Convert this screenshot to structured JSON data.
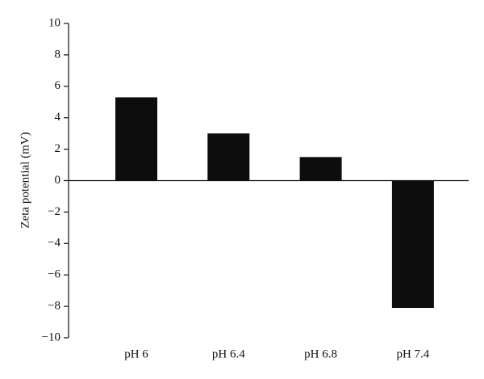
{
  "chart_data": {
    "type": "bar",
    "y_label": "Zeta potential (mV)",
    "categories": [
      "pH 6",
      "pH 6.4",
      "pH 6.8",
      "pH 7.4"
    ],
    "values": [
      5.3,
      3.0,
      1.5,
      -8.1
    ],
    "color": "#0d0d0d",
    "ylim": [
      -10,
      10
    ],
    "yticks": [
      {
        "value": -10,
        "label": "−10"
      },
      {
        "value": -8,
        "label": "−8"
      },
      {
        "value": -6,
        "label": "−6"
      },
      {
        "value": -4,
        "label": "−4"
      },
      {
        "value": -2,
        "label": "−2"
      },
      0,
      2,
      4,
      6,
      8,
      10
    ]
  }
}
